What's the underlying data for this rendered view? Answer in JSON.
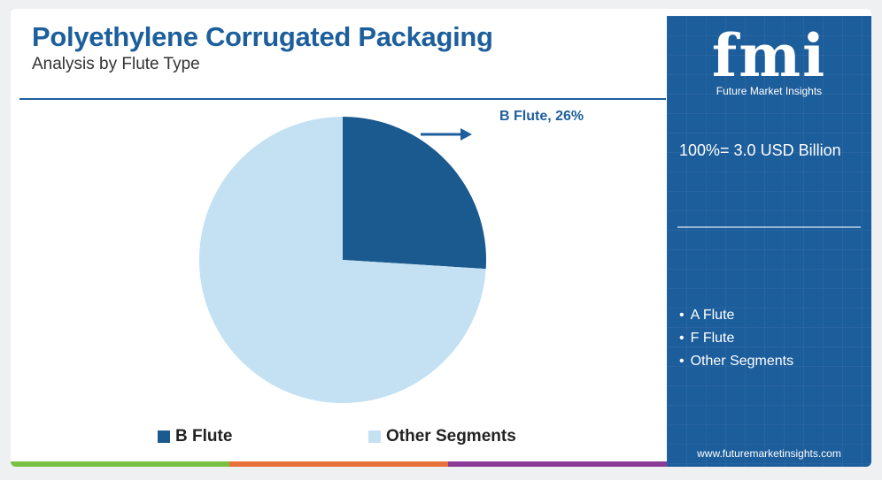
{
  "header": {
    "title": "Polyethylene Corrugated Packaging",
    "subtitle": "Analysis by Flute Type"
  },
  "chart_data": {
    "type": "pie",
    "title": "Polyethylene Corrugated Packaging",
    "subtitle": "Analysis by Flute Type",
    "slices": [
      {
        "label": "B Flute",
        "value": 26,
        "color": "#1a5a8f"
      },
      {
        "label": "Other Segments",
        "value": 74,
        "color": "#c4e1f3"
      }
    ],
    "callout": "B Flute, 26%",
    "legend": [
      "B Flute",
      "Other Segments"
    ],
    "legend_position": "bottom"
  },
  "sidebar": {
    "logo_mark": "fmi",
    "logo_text": "Future Market Insights",
    "total": "100%= 3.0 USD Billion",
    "other_segments": [
      "A Flute",
      "F Flute",
      "Other Segments"
    ],
    "url": "www.futuremarketinsights.com"
  },
  "colors": {
    "brand_blue": "#1c5d9b",
    "bottom_bar": [
      "#7ac043",
      "#e8713a",
      "#8a3b96"
    ]
  }
}
